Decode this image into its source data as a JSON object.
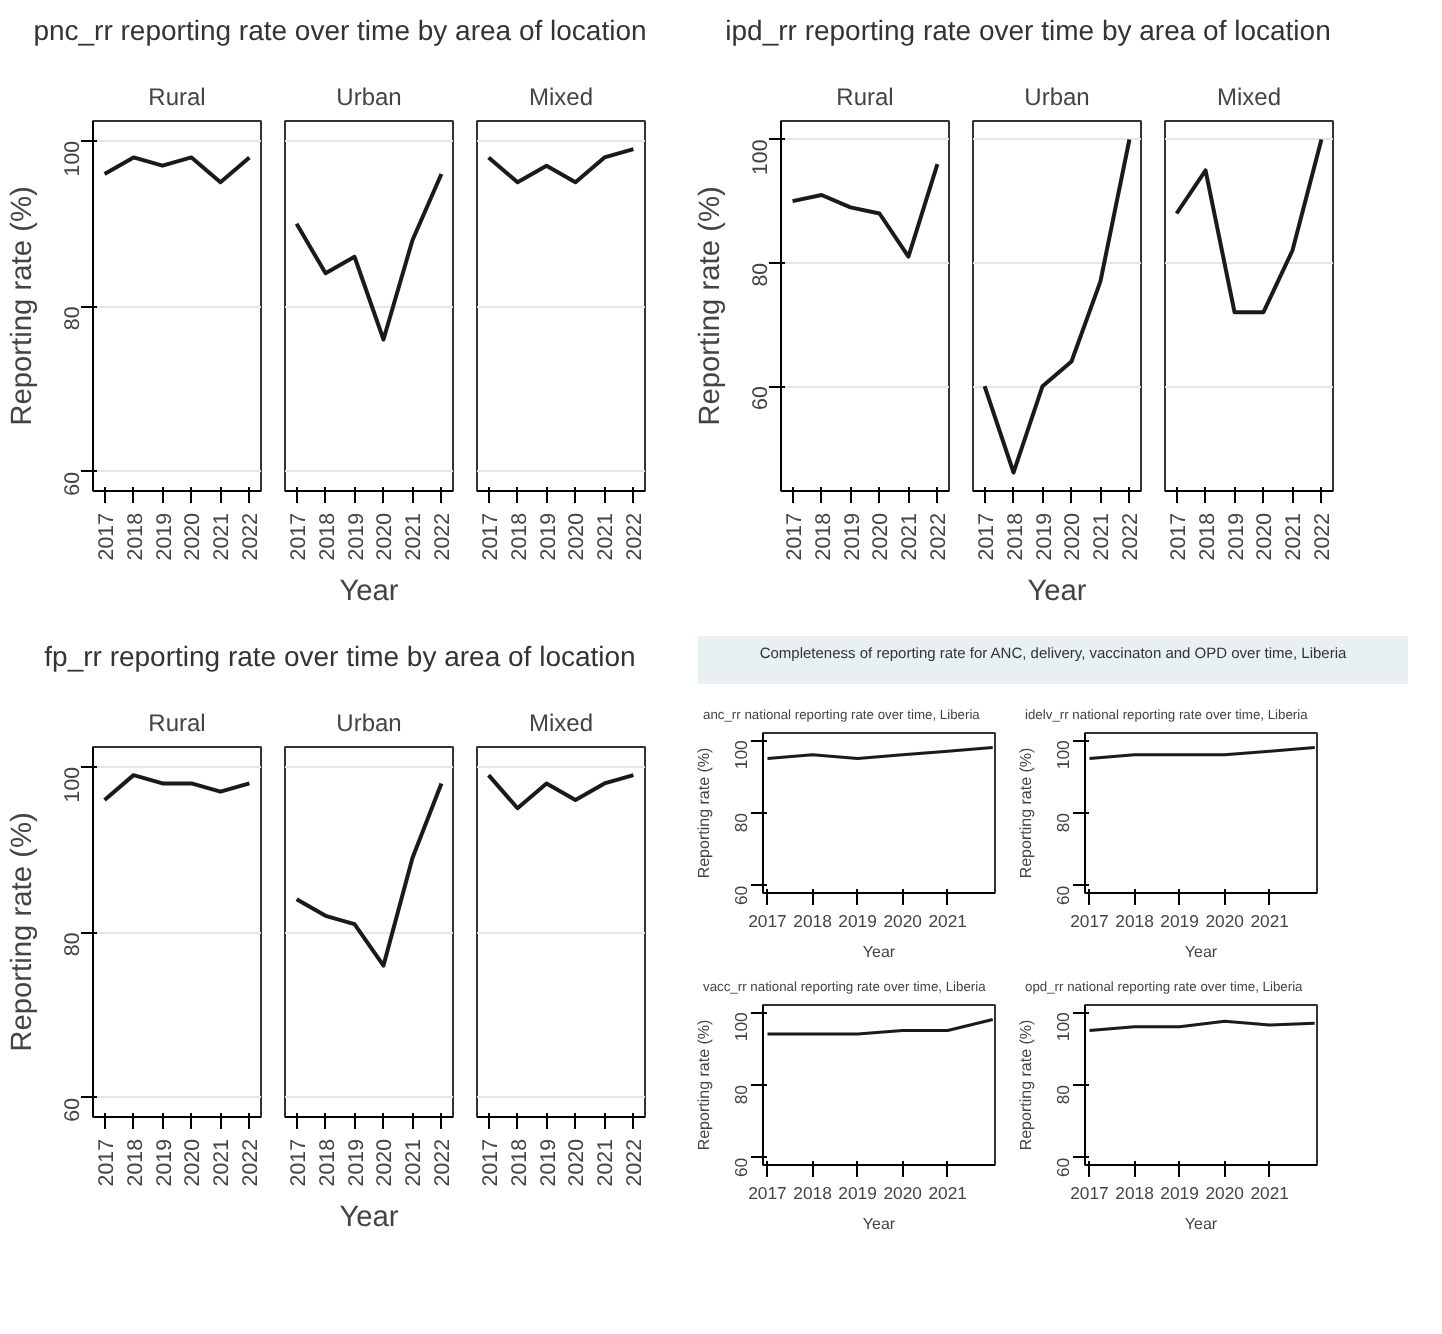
{
  "chart_data": [
    {
      "type": "line",
      "title": "pnc_rr reporting rate over time by area of location",
      "subtitle": "Rural",
      "ylabel": "Reporting rate (%)",
      "x": [
        2017,
        2018,
        2019,
        2020,
        2021,
        2022
      ],
      "values": [
        96,
        98,
        97,
        98,
        95,
        98
      ],
      "color": "#1a1a1a",
      "xlim": [
        2016.6,
        2022.4
      ],
      "xticks": [
        2017,
        2018,
        2019,
        2020,
        2021,
        2022
      ],
      "ylim": [
        57.7,
        102.4
      ],
      "yticks": [
        60,
        80,
        100
      ],
      "grid": "y"
    },
    {
      "type": "line",
      "subtitle": "Urban",
      "xlabel": "Year",
      "x": [
        2017,
        2018,
        2019,
        2020,
        2021,
        2022
      ],
      "values": [
        90,
        84,
        86,
        76,
        88,
        96
      ],
      "color": "#1a1a1a",
      "xlim": [
        2016.6,
        2022.4
      ],
      "xticks": [
        2017,
        2018,
        2019,
        2020,
        2021,
        2022
      ],
      "ylim": [
        57.7,
        102.4
      ],
      "yticks": [
        60,
        80,
        100
      ],
      "grid": "y",
      "tick_labels": "x"
    },
    {
      "type": "line",
      "subtitle": "Mixed",
      "x": [
        2017,
        2018,
        2019,
        2020,
        2021,
        2022
      ],
      "values": [
        98,
        95,
        97,
        95,
        98,
        99
      ],
      "color": "#1a1a1a",
      "xlim": [
        2016.6,
        2022.4
      ],
      "xticks": [
        2017,
        2018,
        2019,
        2020,
        2021,
        2022
      ],
      "ylim": [
        57.7,
        102.4
      ],
      "yticks": [
        60,
        80,
        100
      ],
      "grid": "y",
      "tick_labels": "x"
    },
    {
      "type": "line",
      "title": "ipd_rr reporting rate over time by area of location",
      "subtitle": "Rural",
      "ylabel": "Reporting rate (%)",
      "x": [
        2017,
        2018,
        2019,
        2020,
        2021,
        2022
      ],
      "values": [
        90,
        91,
        89,
        88,
        81,
        96
      ],
      "color": "#1a1a1a",
      "xlim": [
        2016.6,
        2022.4
      ],
      "xticks": [
        2017,
        2018,
        2019,
        2020,
        2021,
        2022
      ],
      "ylim": [
        43,
        103
      ],
      "yticks": [
        60,
        80,
        100
      ],
      "grid": "y"
    },
    {
      "type": "line",
      "subtitle": "Urban",
      "xlabel": "Year",
      "x": [
        2017,
        2018,
        2019,
        2020,
        2021,
        2022
      ],
      "values": [
        60,
        46,
        60,
        64,
        77,
        100
      ],
      "color": "#1a1a1a",
      "xlim": [
        2016.6,
        2022.4
      ],
      "xticks": [
        2017,
        2018,
        2019,
        2020,
        2021,
        2022
      ],
      "ylim": [
        43,
        103
      ],
      "yticks": [
        60,
        80,
        100
      ],
      "grid": "y",
      "tick_labels": "x"
    },
    {
      "type": "line",
      "subtitle": "Mixed",
      "x": [
        2017,
        2018,
        2019,
        2020,
        2021,
        2022
      ],
      "values": [
        88,
        95,
        72,
        72,
        82,
        100
      ],
      "color": "#1a1a1a",
      "xlim": [
        2016.6,
        2022.4
      ],
      "xticks": [
        2017,
        2018,
        2019,
        2020,
        2021,
        2022
      ],
      "ylim": [
        43,
        103
      ],
      "yticks": [
        60,
        80,
        100
      ],
      "grid": "y",
      "tick_labels": "x"
    },
    {
      "type": "line",
      "title": "fp_rr reporting rate over time by area of location",
      "subtitle": "Rural",
      "ylabel": "Reporting rate (%)",
      "x": [
        2017,
        2018,
        2019,
        2020,
        2021,
        2022
      ],
      "values": [
        96,
        99,
        98,
        98,
        97,
        98
      ],
      "color": "#1a1a1a",
      "xlim": [
        2016.6,
        2022.4
      ],
      "xticks": [
        2017,
        2018,
        2019,
        2020,
        2021,
        2022
      ],
      "ylim": [
        57.7,
        102.4
      ],
      "yticks": [
        60,
        80,
        100
      ],
      "grid": "y"
    },
    {
      "type": "line",
      "subtitle": "Urban",
      "xlabel": "Year",
      "x": [
        2017,
        2018,
        2019,
        2020,
        2021,
        2022
      ],
      "values": [
        84,
        82,
        81,
        76,
        89,
        98
      ],
      "color": "#1a1a1a",
      "xlim": [
        2016.6,
        2022.4
      ],
      "xticks": [
        2017,
        2018,
        2019,
        2020,
        2021,
        2022
      ],
      "ylim": [
        57.7,
        102.4
      ],
      "yticks": [
        60,
        80,
        100
      ],
      "grid": "y",
      "tick_labels": "x"
    },
    {
      "type": "line",
      "subtitle": "Mixed",
      "x": [
        2017,
        2018,
        2019,
        2020,
        2021,
        2022
      ],
      "values": [
        99,
        95,
        98,
        96,
        98,
        99
      ],
      "color": "#1a1a1a",
      "xlim": [
        2016.6,
        2022.4
      ],
      "xticks": [
        2017,
        2018,
        2019,
        2020,
        2021,
        2022
      ],
      "ylim": [
        57.7,
        102.4
      ],
      "yticks": [
        60,
        80,
        100
      ],
      "grid": "y",
      "tick_labels": "x"
    },
    {
      "type": "line",
      "title": "Completeness of reporting rate for ANC, delivery, vaccinaton and OPD over time, Liberia",
      "subtitle": "anc_rr national reporting rate over time, Liberia",
      "xlabel": "Year",
      "ylabel": "Reporting rate (%)",
      "x": [
        2017,
        2018,
        2019,
        2020,
        2021,
        2022
      ],
      "values": [
        95,
        96,
        95,
        96,
        97,
        98
      ],
      "color": "#1a1a1a",
      "xlim": [
        2016.9,
        2022.05
      ],
      "xticks": [
        2017,
        2018,
        2019,
        2020,
        2021
      ],
      "ylim": [
        58,
        102
      ],
      "yticks": [
        60,
        80,
        100
      ]
    },
    {
      "type": "line",
      "subtitle": "idelv_rr national reporting rate over time, Liberia",
      "xlabel": "Year",
      "ylabel": "Reporting rate (%)",
      "x": [
        2017,
        2018,
        2019,
        2020,
        2021,
        2022
      ],
      "values": [
        95,
        96,
        96,
        96,
        97,
        98
      ],
      "color": "#1a1a1a",
      "xlim": [
        2016.9,
        2022.05
      ],
      "xticks": [
        2017,
        2018,
        2019,
        2020,
        2021
      ],
      "ylim": [
        58,
        102
      ],
      "yticks": [
        60,
        80,
        100
      ]
    },
    {
      "type": "line",
      "subtitle": "vacc_rr national reporting rate over time, Liberia",
      "xlabel": "Year",
      "ylabel": "Reporting rate (%)",
      "x": [
        2017,
        2018,
        2019,
        2020,
        2021,
        2022
      ],
      "values": [
        94,
        94,
        94,
        95,
        95,
        98
      ],
      "color": "#1a1a1a",
      "xlim": [
        2016.9,
        2022.05
      ],
      "xticks": [
        2017,
        2018,
        2019,
        2020,
        2021
      ],
      "ylim": [
        58,
        102
      ],
      "yticks": [
        60,
        80,
        100
      ]
    },
    {
      "type": "line",
      "subtitle": "opd_rr national reporting rate over time, Liberia",
      "xlabel": "Year",
      "ylabel": "Reporting rate (%)",
      "x": [
        2017,
        2018,
        2019,
        2020,
        2021,
        2022
      ],
      "values": [
        95,
        96,
        96,
        97.5,
        96.5,
        97
      ],
      "color": "#1a1a1a",
      "xlim": [
        2016.9,
        2022.05
      ],
      "xticks": [
        2017,
        2018,
        2019,
        2020,
        2021
      ],
      "ylim": [
        58,
        102
      ],
      "yticks": [
        60,
        80,
        100
      ]
    }
  ]
}
